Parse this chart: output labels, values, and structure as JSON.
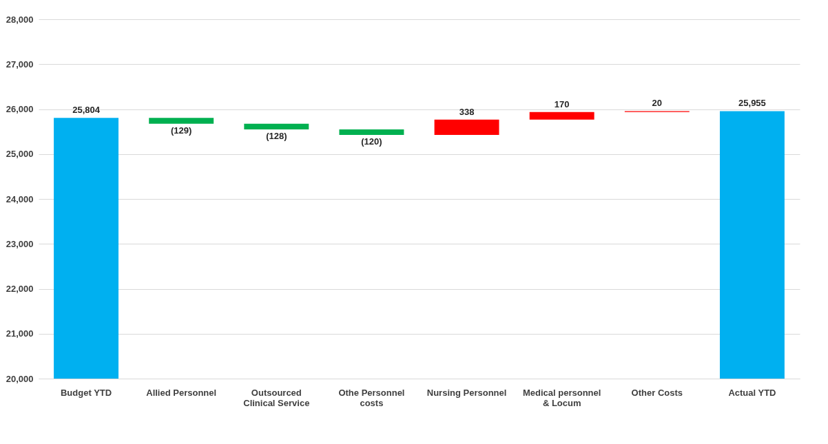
{
  "chart_data": {
    "type": "bar",
    "categories": [
      "Budget YTD",
      "Allied  Personnel",
      "Outsourced Clinical Service",
      "Othe Personnel costs",
      "Nursing Personnel",
      "Medical personnel & Locum",
      "Other Costs",
      "Actual YTD"
    ],
    "values": [
      25804,
      -129,
      -128,
      -120,
      338,
      170,
      20,
      25955
    ],
    "base": [
      null,
      25804,
      25675,
      25547,
      25427,
      25765,
      25935,
      null
    ],
    "value_labels": [
      "25,804",
      "(129)",
      "(128)",
      "(120)",
      "338",
      "170",
      "20",
      "25,955"
    ],
    "colors": [
      "#00b0f0",
      "#00b050",
      "#00b050",
      "#00b050",
      "#ff0000",
      "#ff0000",
      "#ff0000",
      "#00b0f0"
    ],
    "ylim": [
      20000,
      28000
    ],
    "yticks": [
      {
        "value": 20000,
        "label": "20,000"
      },
      {
        "value": 21000,
        "label": "21,000"
      },
      {
        "value": 22000,
        "label": "22,000"
      },
      {
        "value": 23000,
        "label": "23,000"
      },
      {
        "value": 24000,
        "label": "24,000"
      },
      {
        "value": 25000,
        "label": "25,000"
      },
      {
        "value": 26000,
        "label": "26,000"
      },
      {
        "value": 27000,
        "label": "27,000"
      },
      {
        "value": 28000,
        "label": "28,000"
      }
    ],
    "grid": "y"
  }
}
